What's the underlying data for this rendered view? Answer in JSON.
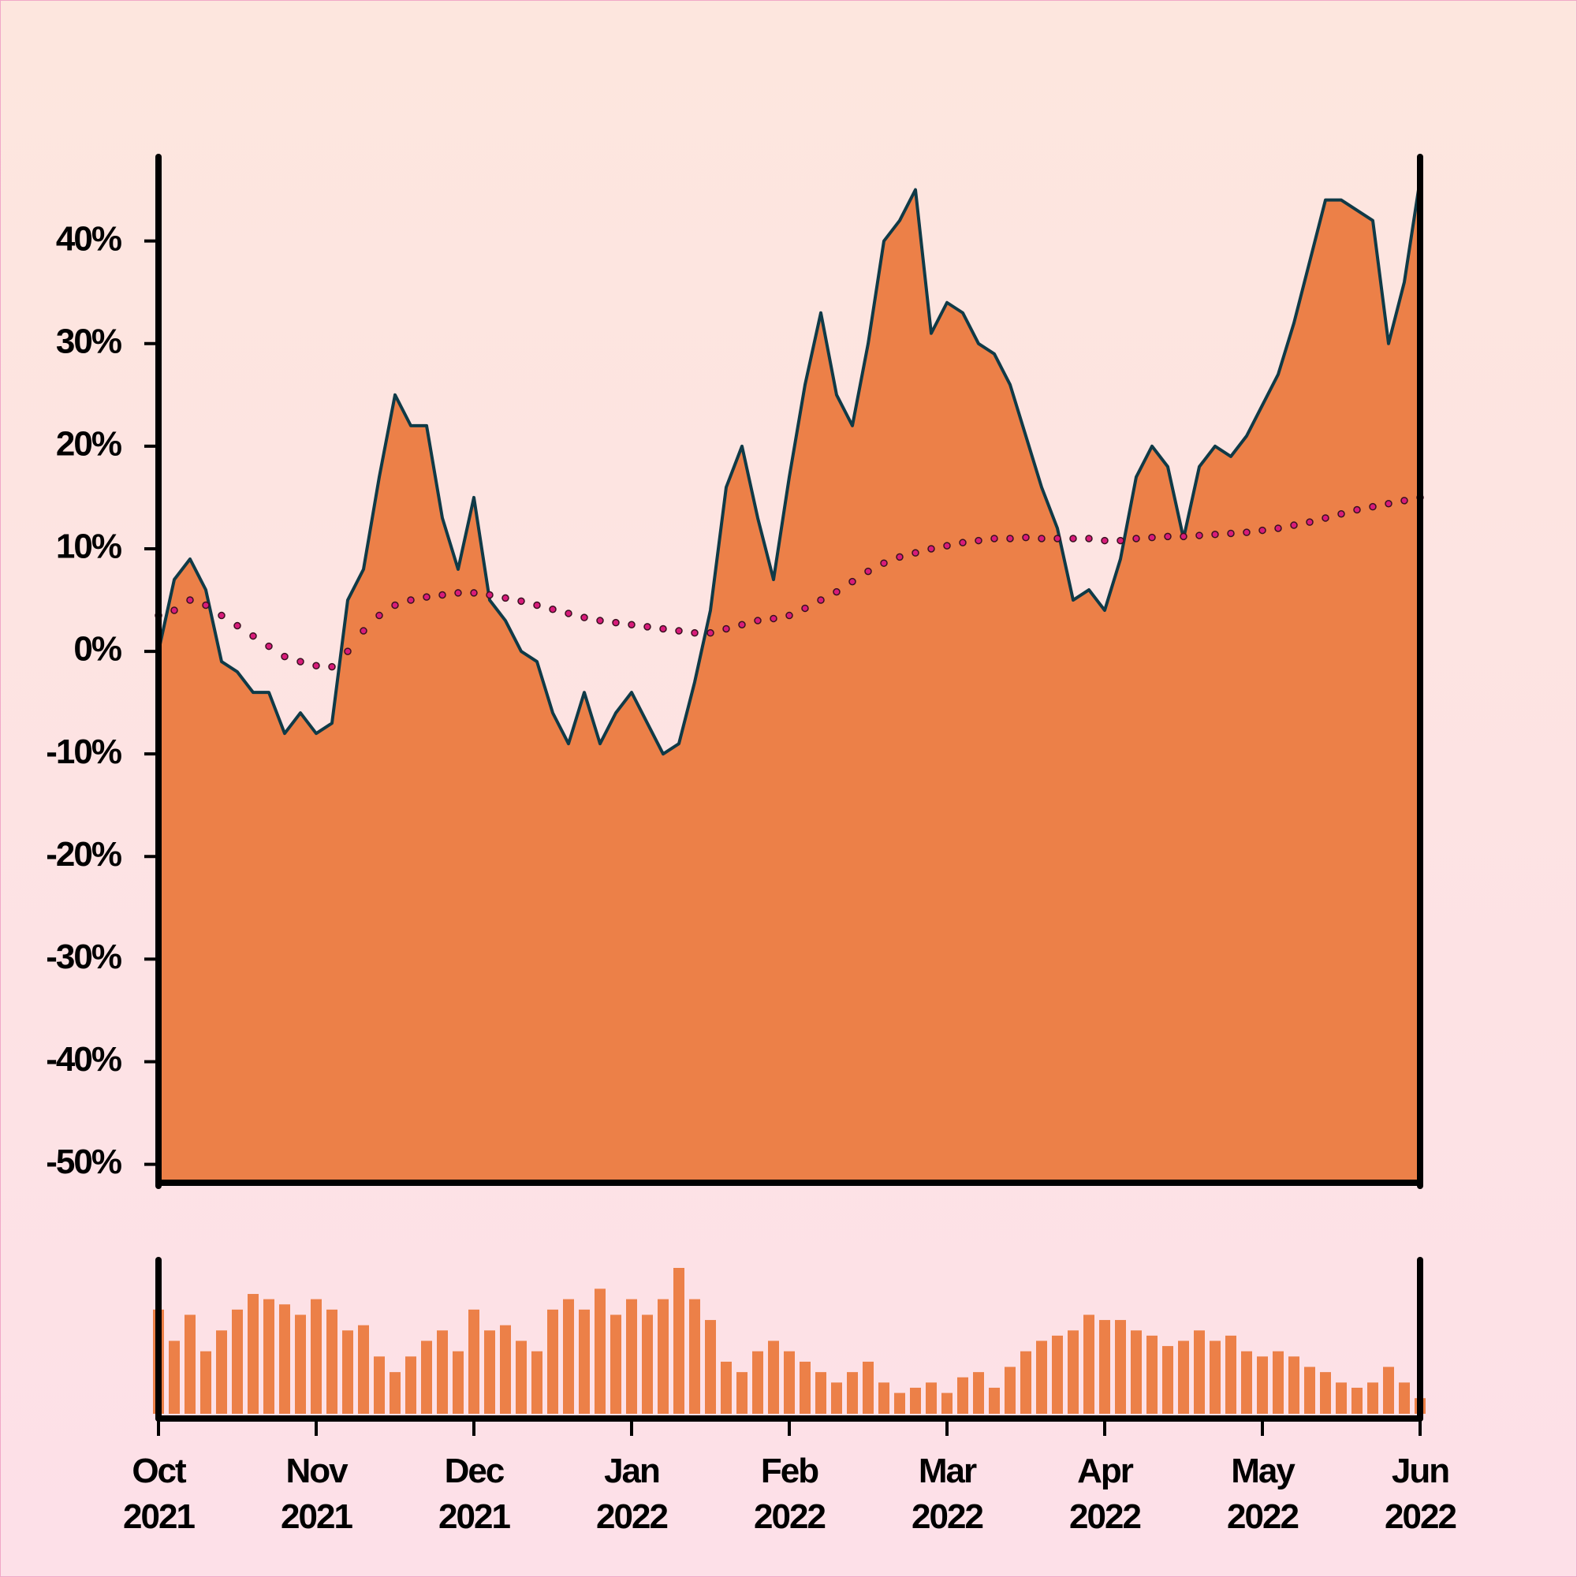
{
  "chart_data": [
    {
      "type": "area",
      "ylim": [
        -51.8,
        48.2
      ],
      "yticks": [
        {
          "value": -50,
          "label": "-50%"
        },
        {
          "value": -40,
          "label": "-40%"
        },
        {
          "value": -30,
          "label": "-30%"
        },
        {
          "value": -20,
          "label": "-20%"
        },
        {
          "value": -10,
          "label": "-10%"
        },
        {
          "value": 0,
          "label": "0%"
        },
        {
          "value": 10,
          "label": "10%"
        },
        {
          "value": 20,
          "label": "20%"
        },
        {
          "value": 30,
          "label": "30%"
        },
        {
          "value": 40,
          "label": "40%"
        }
      ],
      "series": [
        {
          "type": "area",
          "color": "#ec8048",
          "line_color": "#0f3a47",
          "values": [
            0,
            7,
            9,
            6,
            -1,
            -2,
            -4,
            -4,
            -8,
            -6,
            -8,
            -7,
            5,
            8,
            17,
            25,
            22,
            22,
            13,
            8,
            15,
            5,
            3,
            0,
            -1,
            -6,
            -9,
            -4,
            -9,
            -6,
            -4,
            -7,
            -10,
            -9,
            -3,
            4,
            16,
            20,
            13,
            7,
            17,
            26,
            33,
            25,
            22,
            30,
            40,
            42,
            45,
            31,
            34,
            33,
            30,
            29,
            26,
            21,
            16,
            12,
            5,
            6,
            4,
            9,
            17,
            20,
            18,
            11,
            18,
            20,
            19,
            21,
            24,
            27,
            32,
            38,
            44,
            44,
            43,
            42,
            30,
            36,
            46
          ]
        },
        {
          "type": "dotted",
          "color": "#d81b7a",
          "line_color": "#3a1020",
          "values": [
            3.5,
            4,
            5,
            4.5,
            3.5,
            2.5,
            1.5,
            0.5,
            -0.5,
            -1,
            -1.4,
            -1.5,
            0,
            2,
            3.5,
            4.5,
            5,
            5.3,
            5.5,
            5.7,
            5.7,
            5.5,
            5.2,
            4.9,
            4.5,
            4.1,
            3.7,
            3.3,
            3,
            2.8,
            2.6,
            2.4,
            2.2,
            2,
            1.8,
            1.8,
            2.2,
            2.6,
            3,
            3.2,
            3.5,
            4.2,
            5,
            5.8,
            6.8,
            7.8,
            8.6,
            9.2,
            9.6,
            10,
            10.3,
            10.6,
            10.8,
            11,
            11,
            11.1,
            11,
            11,
            11,
            11,
            10.8,
            10.8,
            11,
            11.1,
            11.2,
            11.2,
            11.3,
            11.4,
            11.5,
            11.6,
            11.8,
            12,
            12.3,
            12.6,
            13,
            13.4,
            13.8,
            14.1,
            14.4,
            14.7,
            15
          ]
        }
      ]
    },
    {
      "type": "bar",
      "color": "#ec8048",
      "categories": [
        "Oct\n2021",
        null,
        null,
        null,
        null,
        null,
        null,
        null,
        null,
        null,
        "Nov\n2021",
        null,
        null,
        null,
        null,
        null,
        null,
        null,
        null,
        null,
        "Dec\n2021",
        null,
        null,
        null,
        null,
        null,
        null,
        null,
        null,
        null,
        "Jan\n2022",
        null,
        null,
        null,
        null,
        null,
        null,
        null,
        null,
        null,
        "Feb\n2022",
        null,
        null,
        null,
        null,
        null,
        null,
        null,
        null,
        null,
        "Mar\n2022",
        null,
        null,
        null,
        null,
        null,
        null,
        null,
        null,
        null,
        "Apr\n2022",
        null,
        null,
        null,
        null,
        null,
        null,
        null,
        null,
        null,
        "May\n2022",
        null,
        null,
        null,
        null,
        null,
        null,
        null,
        null,
        null,
        "Jun\n2022"
      ],
      "values": [
        100,
        70,
        95,
        60,
        80,
        100,
        115,
        110,
        105,
        95,
        110,
        100,
        80,
        85,
        55,
        40,
        55,
        70,
        80,
        60,
        100,
        80,
        85,
        70,
        60,
        100,
        110,
        100,
        120,
        95,
        110,
        95,
        110,
        140,
        110,
        90,
        50,
        40,
        60,
        70,
        60,
        50,
        40,
        30,
        40,
        50,
        30,
        20,
        25,
        30,
        20,
        35,
        40,
        25,
        45,
        60,
        70,
        75,
        80,
        95,
        90,
        90,
        80,
        75,
        65,
        70,
        80,
        70,
        75,
        60,
        55,
        60,
        55,
        45,
        40,
        30,
        25,
        30,
        45,
        30,
        15
      ]
    }
  ]
}
